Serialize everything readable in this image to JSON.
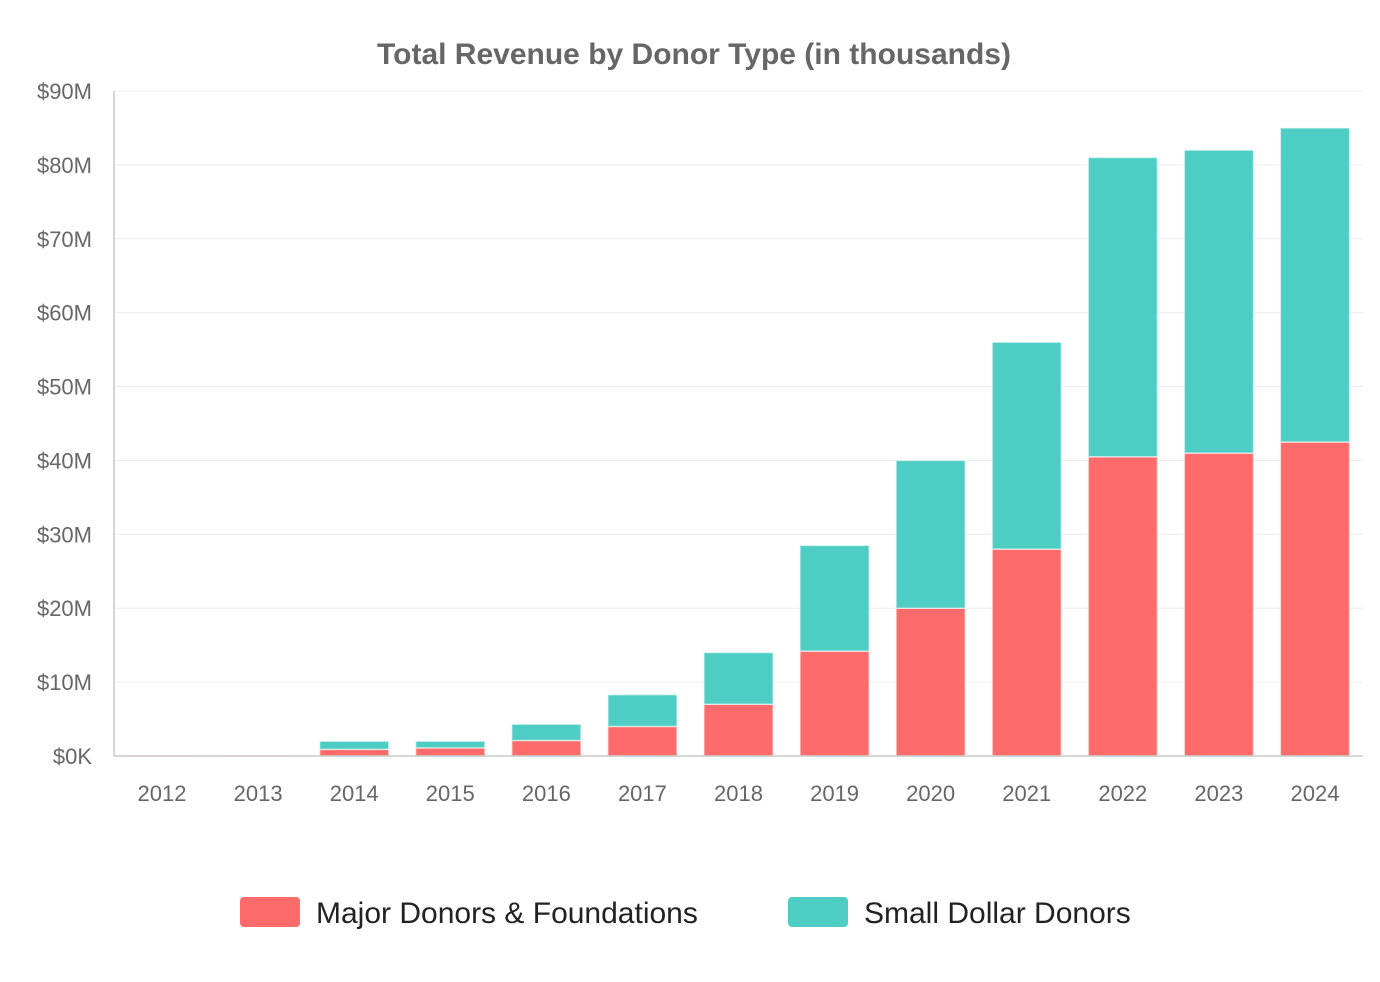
{
  "chart_data": {
    "type": "bar",
    "stacked": true,
    "title": "Total Revenue by Donor Type (in thousands)",
    "xlabel": "",
    "ylabel": "",
    "categories": [
      "2012",
      "2013",
      "2014",
      "2015",
      "2016",
      "2017",
      "2018",
      "2019",
      "2020",
      "2021",
      "2022",
      "2023",
      "2024"
    ],
    "series": [
      {
        "name": "Major Donors & Foundations",
        "color": "#ff6b6b",
        "values": [
          100,
          100,
          900,
          1100,
          2100,
          4000,
          7000,
          14200,
          20000,
          28000,
          40500,
          41000,
          42500
        ]
      },
      {
        "name": "Small Dollar Donors",
        "color": "#4ecdc4",
        "values": [
          0,
          0,
          1100,
          900,
          2200,
          4300,
          7000,
          14300,
          20000,
          28000,
          40500,
          41000,
          42500
        ]
      }
    ],
    "ylim": [
      0,
      90000
    ],
    "yticks": [
      0,
      10000,
      20000,
      30000,
      40000,
      50000,
      60000,
      70000,
      80000,
      90000
    ],
    "ytick_labels": [
      "$0K",
      "$10M",
      "$20M",
      "$30M",
      "$40M",
      "$50M",
      "$60M",
      "$70M",
      "$80M",
      "$90M"
    ],
    "grid": true,
    "legend_position": "bottom"
  }
}
